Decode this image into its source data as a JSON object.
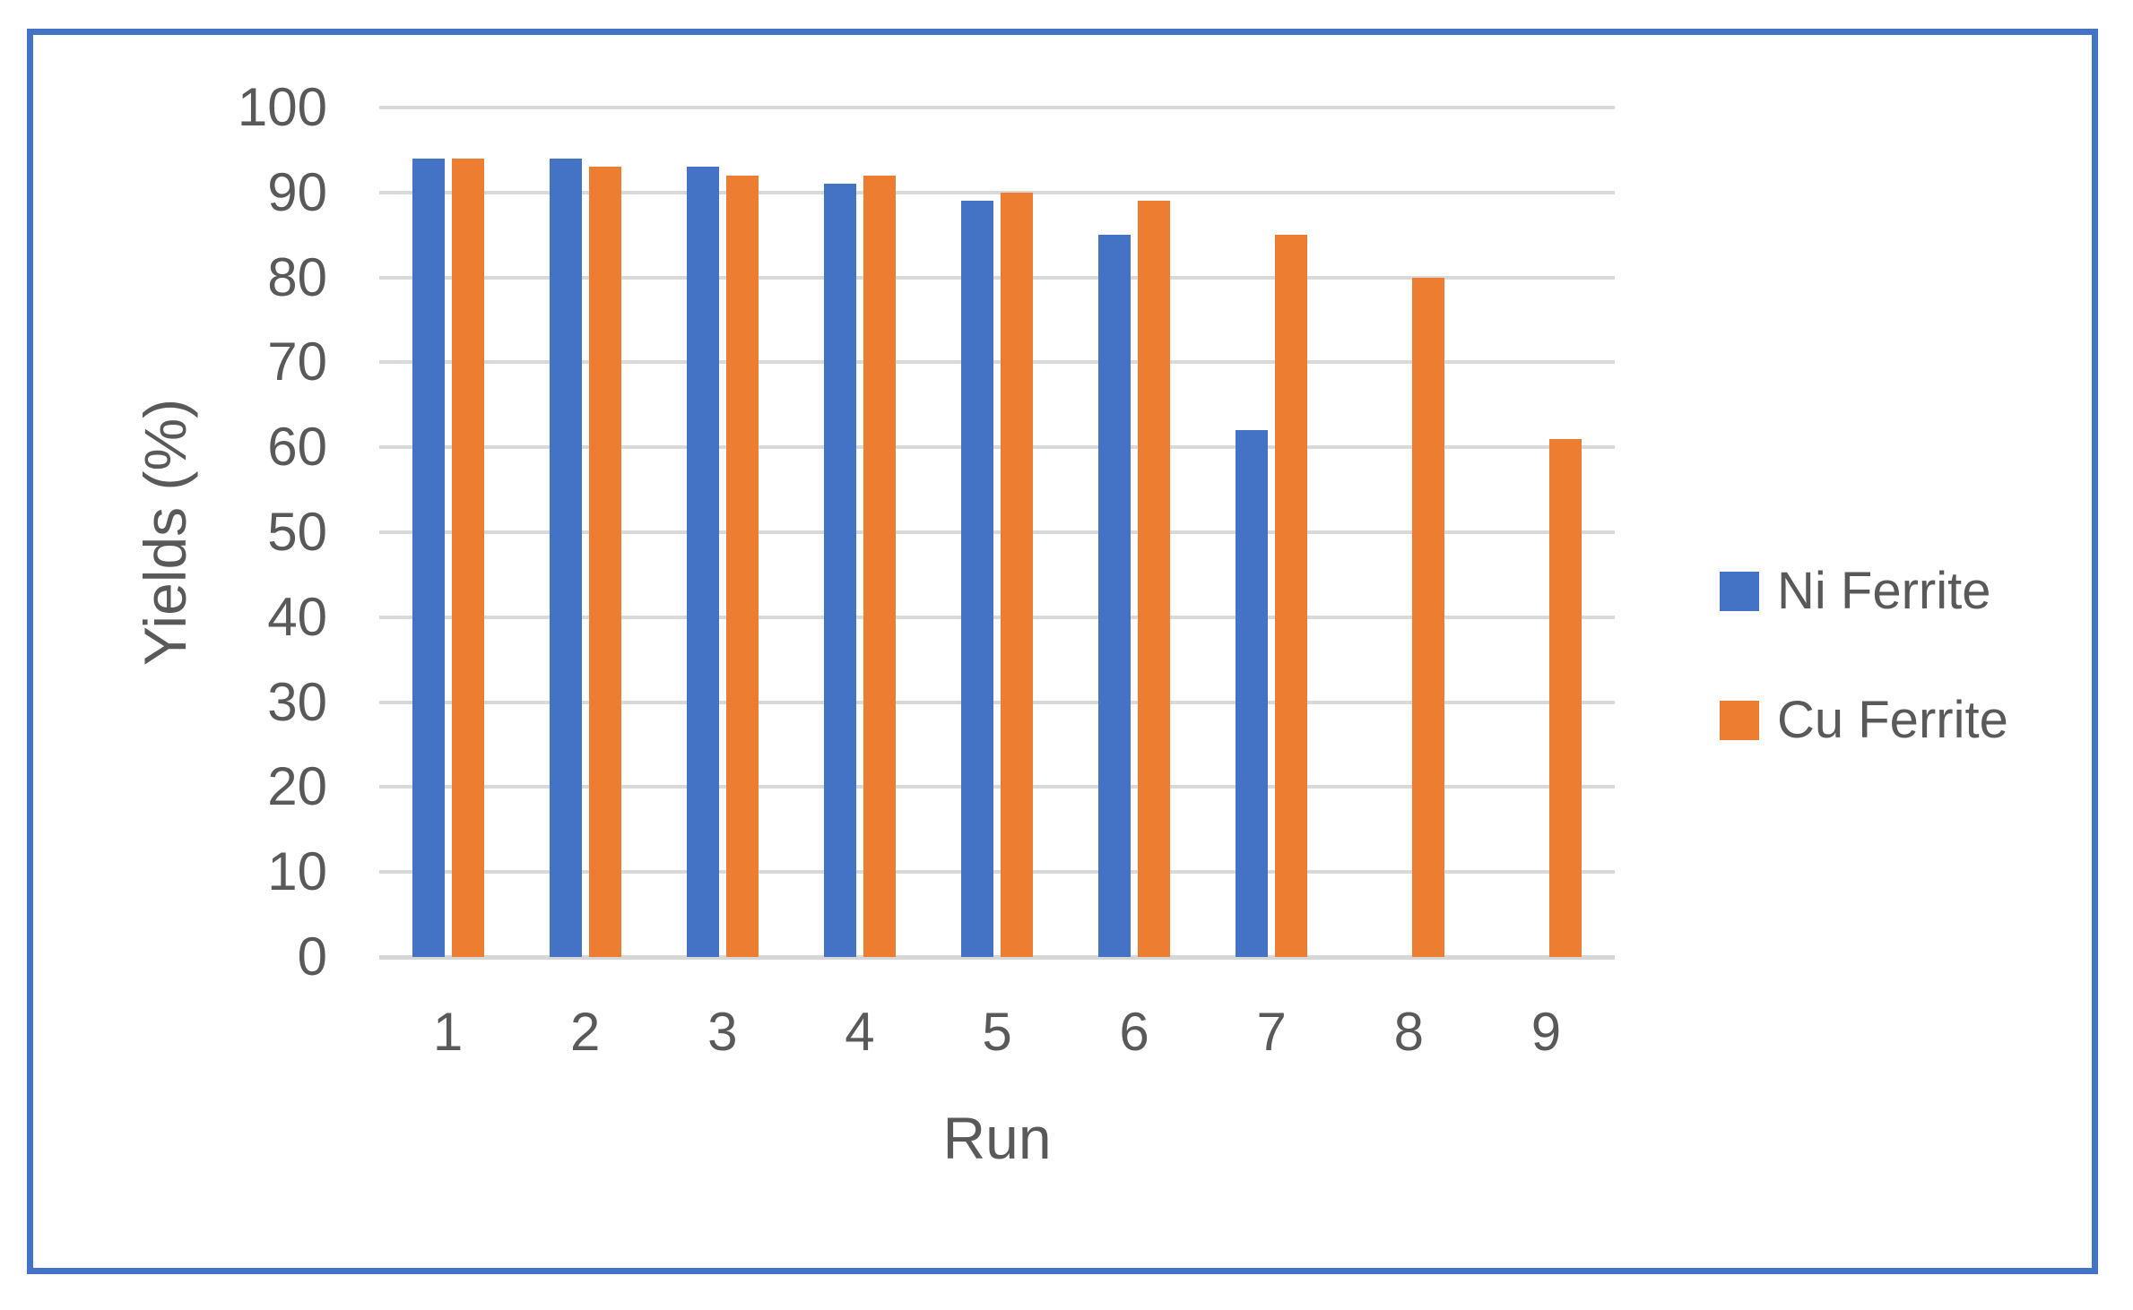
{
  "frame": {
    "border_color": "#4472C4"
  },
  "chart_data": {
    "type": "bar",
    "title": "",
    "categories": [
      "1",
      "2",
      "3",
      "4",
      "5",
      "6",
      "7",
      "8",
      "9"
    ],
    "series": [
      {
        "name": "Ni Ferrite",
        "color": "#4472C4",
        "values": [
          94,
          94,
          93,
          91,
          89,
          85,
          62,
          null,
          null
        ]
      },
      {
        "name": "Cu Ferrite",
        "color": "#ED7D31",
        "values": [
          94,
          93,
          92,
          92,
          90,
          89,
          85,
          80,
          61
        ]
      }
    ],
    "xlabel": "Run",
    "ylabel": "Yields (%)",
    "ylim": [
      0,
      100
    ],
    "ytick_step": 10,
    "y_tick_labels": [
      "0",
      "10",
      "20",
      "30",
      "40",
      "50",
      "60",
      "70",
      "80",
      "90",
      "100"
    ],
    "grid": "horizontal-major",
    "gridline_color": "#D9D9D9",
    "axis_line_color": "#D6D6D6",
    "text_color": "#595959",
    "legend_position": "right",
    "legend_labels": [
      "Ni Ferrite",
      "Cu Ferrite"
    ]
  }
}
